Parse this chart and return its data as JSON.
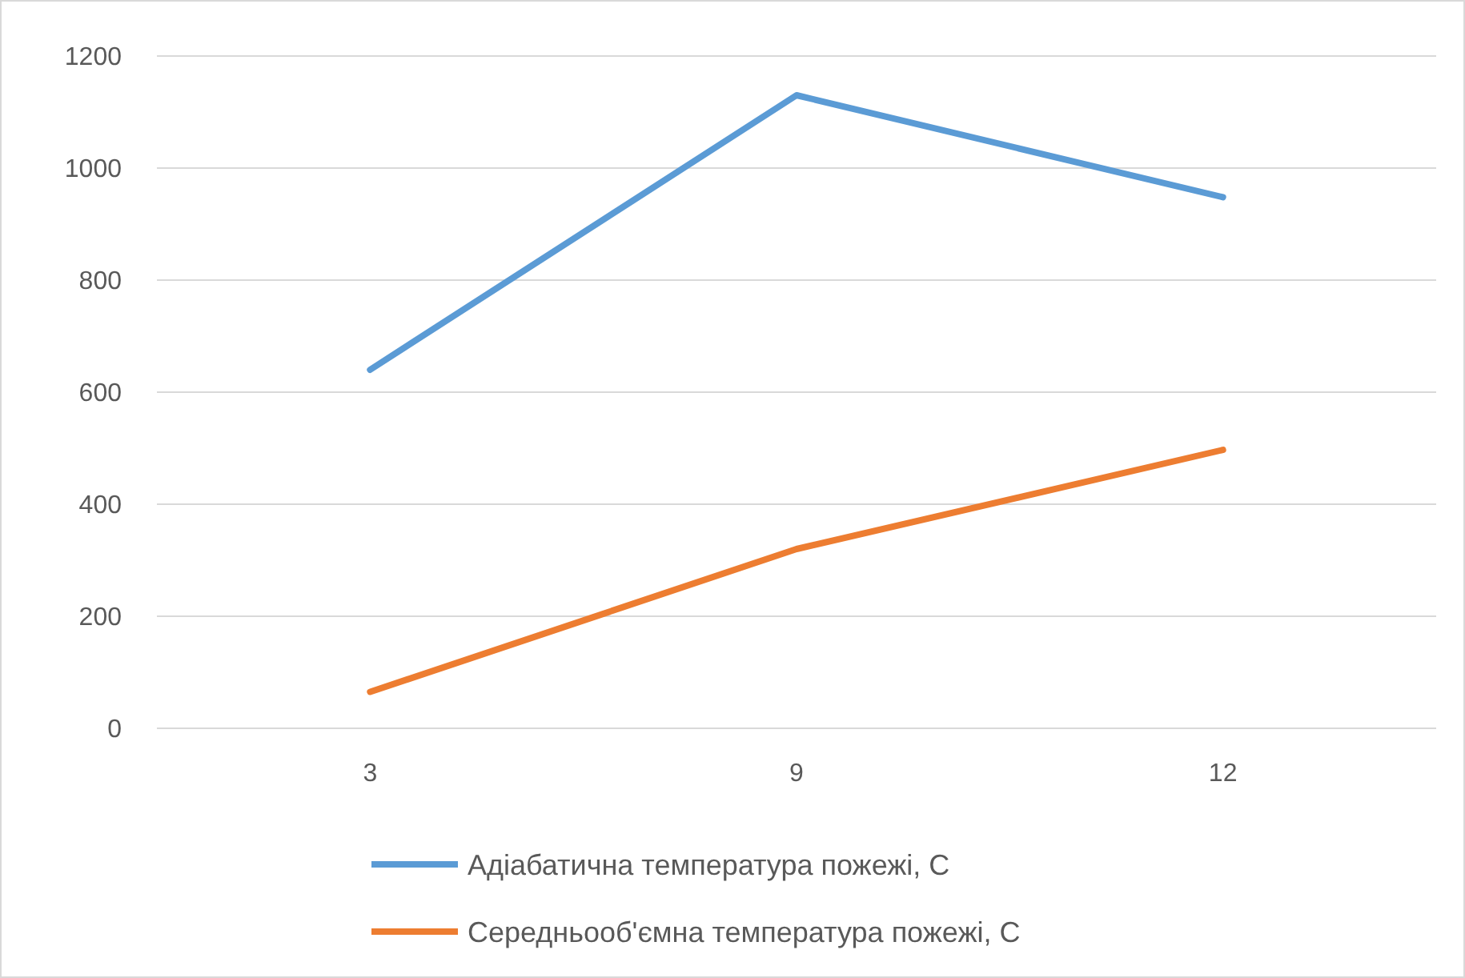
{
  "chart_data": {
    "type": "line",
    "categories": [
      "3",
      "9",
      "12"
    ],
    "series": [
      {
        "name": "Адіабатична температура пожежі, С",
        "color": "#5b9bd5",
        "values": [
          640,
          1130,
          948
        ]
      },
      {
        "name": "Середньооб'ємна температура пожежі, С",
        "color": "#ed7d31",
        "values": [
          65,
          320,
          497
        ]
      }
    ],
    "ylim": [
      0,
      1200
    ],
    "yticks": [
      0,
      200,
      400,
      600,
      800,
      1000,
      1200
    ],
    "grid": "y",
    "legend": "bottom",
    "marker": "none",
    "line_style": "solid"
  }
}
